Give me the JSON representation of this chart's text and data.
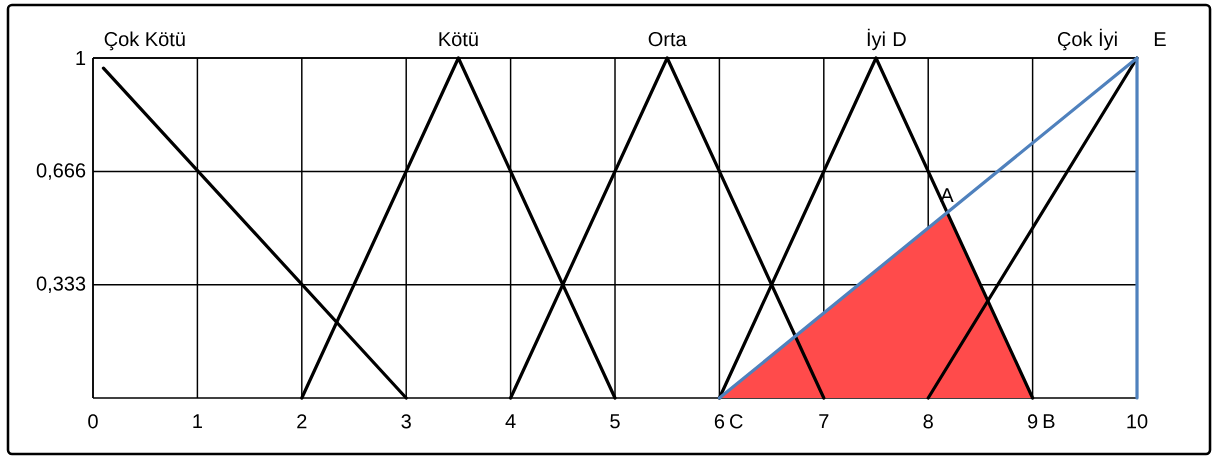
{
  "chart_data": {
    "type": "line",
    "xlim": [
      0,
      10
    ],
    "ylim": [
      0,
      1
    ],
    "xticks": [
      0,
      1,
      2,
      3,
      4,
      5,
      6,
      7,
      8,
      9,
      10
    ],
    "yticks": [
      {
        "value": 0.333,
        "label": "0,333"
      },
      {
        "value": 0.666,
        "label": "0,666"
      },
      1
    ],
    "grid": true,
    "marker": "none",
    "line_style": "solid",
    "series": [
      {
        "type": "area",
        "color": "#ff4b4b",
        "x": [
          6,
          8.18,
          9
        ],
        "values": [
          0,
          0.545,
          0
        ]
      },
      {
        "name": "Çok Kötü",
        "color": "#000000",
        "x": [
          0.1,
          3
        ],
        "values": [
          0.97,
          0
        ]
      },
      {
        "name": "Kötü",
        "color": "#000000",
        "x": [
          2,
          3.5,
          5
        ],
        "values": [
          0,
          1,
          0
        ]
      },
      {
        "name": "Orta",
        "color": "#000000",
        "x": [
          4,
          5.5,
          7
        ],
        "values": [
          0,
          1,
          0
        ]
      },
      {
        "name": "İyi",
        "color": "#000000",
        "x": [
          6,
          7.5,
          9
        ],
        "values": [
          0,
          1,
          0
        ]
      },
      {
        "name": "Çok İyi",
        "color": "#000000",
        "x": [
          8,
          10
        ],
        "values": [
          0,
          1
        ]
      },
      {
        "color": "#4f81bd",
        "x": [
          6,
          10,
          10
        ],
        "values": [
          0,
          1,
          0
        ]
      }
    ],
    "annotations": [
      {
        "text": "A",
        "x": 8.18,
        "y": 0.545
      },
      {
        "text": "B",
        "x": 9,
        "y": 0
      },
      {
        "text": "C",
        "x": 6,
        "y": 0
      },
      {
        "text": "D",
        "x": 7.5,
        "y": 1
      },
      {
        "text": "E",
        "x": 10,
        "y": 1
      }
    ]
  }
}
